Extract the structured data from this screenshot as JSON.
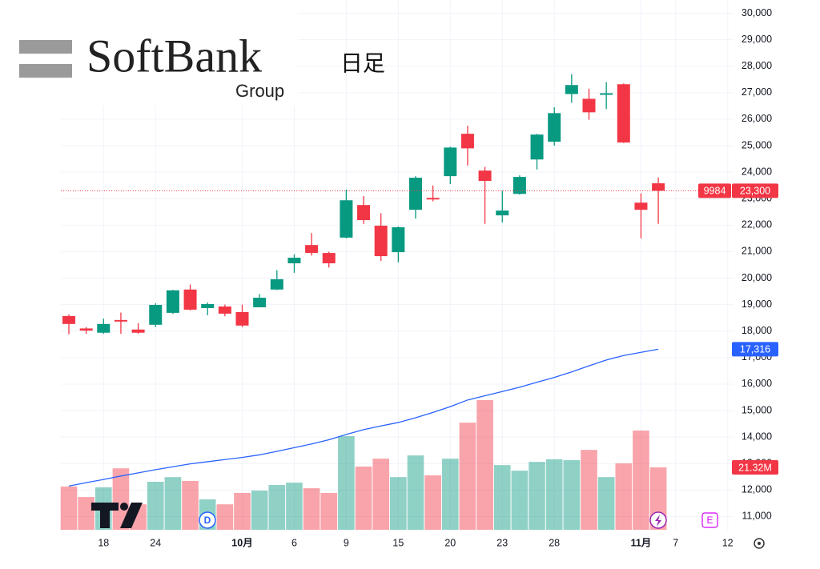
{
  "chart_data": {
    "type": "candlestick",
    "logo": {
      "name": "SoftBank",
      "sub": "Group"
    },
    "interval": "日足",
    "symbol": "9984",
    "close_label": "23,300",
    "up_color": "#089981",
    "down_color": "#f23645",
    "categories": [
      null,
      null,
      "18",
      null,
      null,
      "24",
      null,
      null,
      null,
      null,
      "10月",
      null,
      null,
      "6",
      null,
      null,
      "9",
      null,
      null,
      "15",
      null,
      null,
      "20",
      null,
      null,
      "23",
      null,
      null,
      "28",
      null,
      null,
      null,
      null,
      "11月",
      null,
      "7",
      null,
      null,
      "12"
    ],
    "open": [
      18570,
      18100,
      17940,
      18420,
      18060,
      18240,
      18690,
      19570,
      18870,
      18930,
      18720,
      18900,
      19570,
      20560,
      21250,
      20950,
      21530,
      22760,
      21980,
      20980,
      22580,
      23030,
      23850,
      25450,
      24060,
      22370,
      23180,
      24480,
      25150,
      26950,
      26770,
      26920,
      27320,
      22850,
      23580,
      null,
      null,
      null,
      null
    ],
    "high": [
      18630,
      18150,
      18470,
      18700,
      18300,
      19050,
      19560,
      19760,
      19080,
      19000,
      19000,
      19400,
      20300,
      20900,
      21700,
      21000,
      23340,
      23100,
      22450,
      21950,
      23850,
      23500,
      24960,
      25750,
      24200,
      23300,
      23880,
      25450,
      26450,
      27700,
      27150,
      27400,
      27350,
      23200,
      23800,
      null,
      null,
      null,
      null
    ],
    "low": [
      17880,
      17900,
      17900,
      17900,
      17900,
      18150,
      18650,
      18780,
      18600,
      18560,
      18150,
      18900,
      19550,
      20200,
      20850,
      20400,
      21500,
      22050,
      20650,
      20600,
      22250,
      22900,
      23550,
      24250,
      22050,
      22100,
      23150,
      24100,
      25000,
      26620,
      25980,
      26380,
      25100,
      21500,
      22050,
      null,
      null,
      null,
      null
    ],
    "close": [
      18270,
      18020,
      18270,
      18360,
      17940,
      18990,
      19540,
      18810,
      19020,
      18660,
      18210,
      19260,
      19960,
      20770,
      20950,
      20560,
      22940,
      22190,
      20830,
      21920,
      23790,
      22970,
      24930,
      24900,
      23670,
      22550,
      23820,
      25420,
      26230,
      27290,
      26260,
      26980,
      25120,
      22580,
      23300,
      null,
      null,
      null,
      null
    ],
    "volume": {
      "values": [
        14.8,
        11.2,
        14.5,
        21.0,
        8.7,
        16.4,
        18.0,
        16.7,
        10.4,
        8.7,
        12.6,
        13.4,
        15.3,
        16.1,
        14.2,
        12.6,
        32.0,
        21.6,
        24.3,
        18.0,
        25.4,
        18.6,
        24.3,
        36.6,
        44.3,
        22.1,
        20.2,
        23.2,
        24.1,
        23.8,
        27.3,
        18.0,
        22.7,
        33.9,
        21.32,
        null,
        null,
        null,
        null
      ],
      "last_label": "21.32M"
    },
    "moving_average": {
      "color": "#2962ff",
      "values": [
        12150,
        12280,
        12400,
        12530,
        12650,
        12770,
        12880,
        12990,
        13070,
        13150,
        13230,
        13330,
        13460,
        13600,
        13740,
        13900,
        14100,
        14280,
        14420,
        14550,
        14730,
        14930,
        15150,
        15400,
        15560,
        15720,
        15880,
        16070,
        16250,
        16460,
        16690,
        16910,
        17080,
        17200,
        17316,
        null,
        null,
        null,
        null
      ],
      "last_label": "17,316"
    },
    "ylim": [
      10500,
      30500
    ],
    "yticks": [
      {
        "value": 11000,
        "label": "11,000"
      },
      {
        "value": 12000,
        "label": "12,000"
      },
      {
        "value": 13000,
        "label": "13,000"
      },
      {
        "value": 14000,
        "label": "14,000"
      },
      {
        "value": 15000,
        "label": "15,000"
      },
      {
        "value": 16000,
        "label": "16,000"
      },
      {
        "value": 17000,
        "label": "17,000"
      },
      {
        "value": 18000,
        "label": "18,000"
      },
      {
        "value": 19000,
        "label": "19,000"
      },
      {
        "value": 20000,
        "label": "20,000"
      },
      {
        "value": 21000,
        "label": "21,000"
      },
      {
        "value": 22000,
        "label": "22,000"
      },
      {
        "value": 23000,
        "label": "23,000"
      },
      {
        "value": 24000,
        "label": "24,000"
      },
      {
        "value": 25000,
        "label": "25,000"
      },
      {
        "value": 26000,
        "label": "26,000"
      },
      {
        "value": 27000,
        "label": "27,000"
      },
      {
        "value": 28000,
        "label": "28,000"
      },
      {
        "value": 29000,
        "label": "29,000"
      },
      {
        "value": 30000,
        "label": "30,000"
      }
    ],
    "y2lim": [
      0,
      181
    ],
    "grid": true,
    "events": [
      "D",
      "E"
    ]
  }
}
